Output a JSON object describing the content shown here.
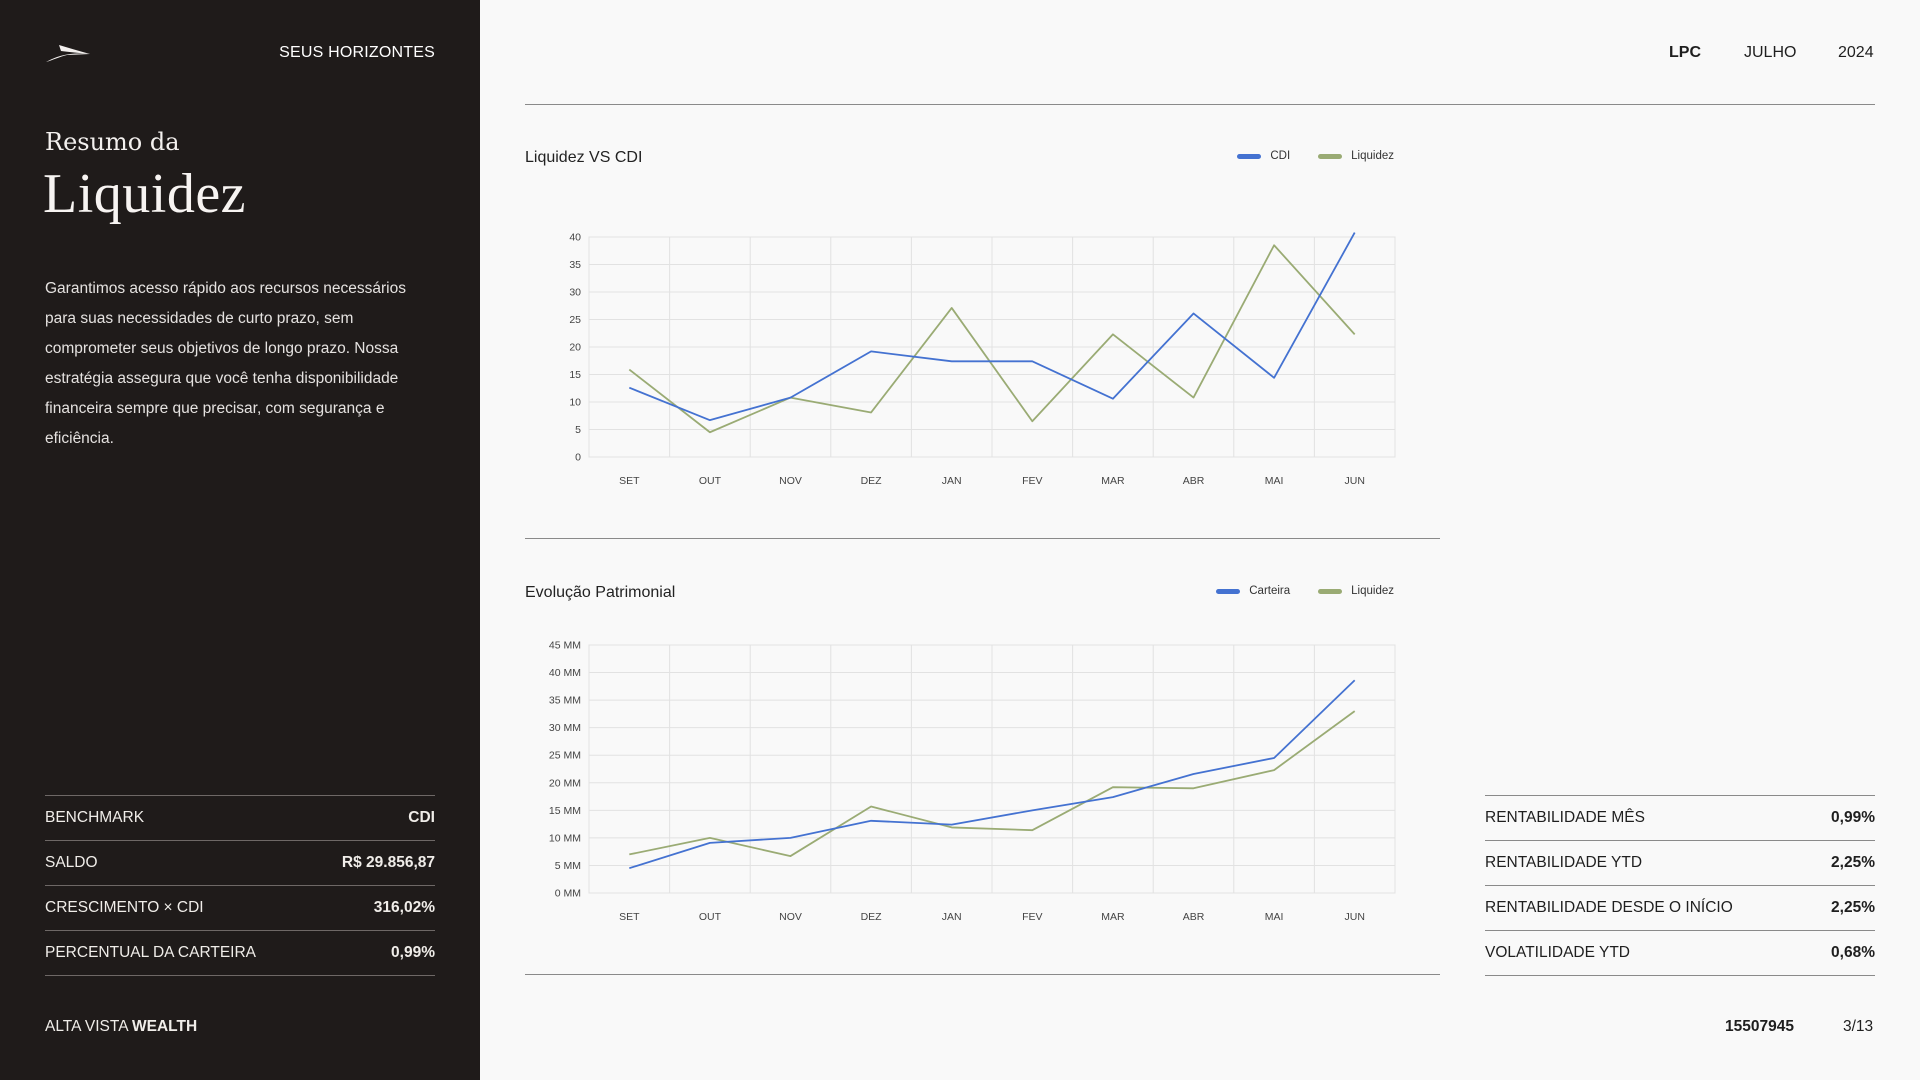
{
  "sidebar": {
    "brand": "SEUS HORIZONTES",
    "title_small": "Resumo da",
    "title_big": "Liquidez",
    "description": "Garantimos acesso rápido aos recursos necessários para suas necessidades de curto prazo, sem comprometer seus objetivos de longo prazo. Nossa estratégia assegura que você tenha disponibilidade financeira sempre que precisar, com segurança e eficiência.",
    "stats": [
      {
        "label": "BENCHMARK",
        "value": "CDI"
      },
      {
        "label": "SALDO",
        "value": "R$ 29.856,87"
      },
      {
        "label": "CRESCIMENTO × CDI",
        "value": "316,02%"
      },
      {
        "label": "PERCENTUAL DA CARTEIRA",
        "value": "0,99%"
      }
    ],
    "footer_light": "ALTA VISTA ",
    "footer_bold": "WEALTH"
  },
  "header": {
    "client": "LPC",
    "month": "JULHO",
    "year": "2024"
  },
  "metrics": [
    {
      "label": "RENTABILIDADE MÊS",
      "value": "0,99%"
    },
    {
      "label": "RENTABILIDADE YTD",
      "value": "2,25%"
    },
    {
      "label": "RENTABILIDADE DESDE O INÍCIO",
      "value": "2,25%"
    },
    {
      "label": "VOLATILIDADE YTD",
      "value": "0,68%"
    }
  ],
  "footer": {
    "account": "15507945",
    "page": "3/13"
  },
  "colors": {
    "blue": "#4472d1",
    "green": "#9aab74",
    "sidebar_bg": "#1f1b1a"
  },
  "chart_data": [
    {
      "type": "line",
      "title": "Liquidez VS CDI",
      "categories": [
        "SET",
        "OUT",
        "NOV",
        "DEZ",
        "JAN",
        "FEV",
        "MAR",
        "ABR",
        "MAI",
        "JUN"
      ],
      "ylim": [
        0,
        40
      ],
      "yticks": [
        0,
        5,
        10,
        15,
        20,
        25,
        30,
        35,
        40
      ],
      "ytick_labels": [
        "0",
        "5",
        "10",
        "15",
        "20",
        "25",
        "30",
        "35",
        "40"
      ],
      "grid": true,
      "legend_position": "top-right",
      "series": [
        {
          "name": "CDI",
          "color": "#4472d1",
          "values": [
            12.6,
            6.7,
            10.8,
            19.2,
            17.4,
            17.4,
            10.6,
            26.1,
            14.4,
            40.8
          ]
        },
        {
          "name": "Liquidez",
          "color": "#9aab74",
          "values": [
            15.9,
            4.5,
            10.8,
            8.1,
            27.1,
            6.5,
            22.3,
            10.8,
            38.5,
            22.3
          ]
        }
      ]
    },
    {
      "type": "line",
      "title": "Evolução Patrimonial",
      "categories": [
        "SET",
        "OUT",
        "NOV",
        "DEZ",
        "JAN",
        "FEV",
        "MAR",
        "ABR",
        "MAI",
        "JUN"
      ],
      "ylim": [
        0,
        45
      ],
      "yticks": [
        0,
        5,
        10,
        15,
        20,
        25,
        30,
        35,
        40,
        45
      ],
      "ytick_labels": [
        "0 MM",
        "5 MM",
        "10 MM",
        "15 MM",
        "20 MM",
        "25 MM",
        "30 MM",
        "35 MM",
        "40 MM",
        "45 MM"
      ],
      "grid": true,
      "legend_position": "top-right",
      "series": [
        {
          "name": "Carteira",
          "color": "#4472d1",
          "values": [
            4.5,
            9.1,
            10.0,
            13.1,
            12.4,
            15.0,
            17.4,
            21.6,
            24.5,
            38.6
          ]
        },
        {
          "name": "Liquidez",
          "color": "#9aab74",
          "values": [
            7.0,
            10.0,
            6.7,
            15.7,
            11.9,
            11.4,
            19.2,
            19.0,
            22.3,
            33.0
          ]
        }
      ]
    }
  ]
}
